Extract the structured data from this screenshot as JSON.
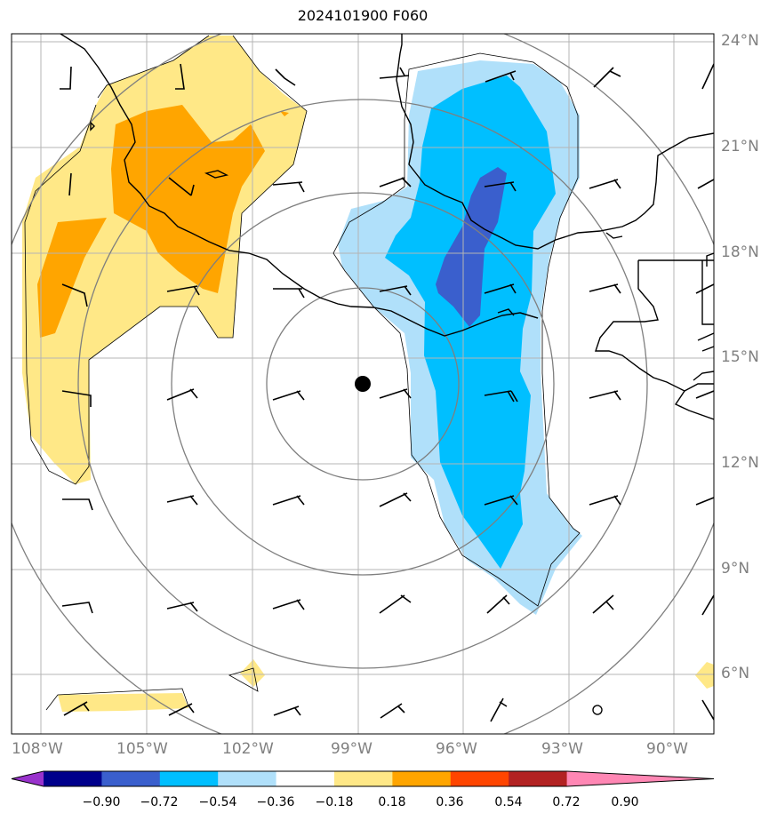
{
  "title": "2024101900 F060",
  "lat_labels": [
    "24°N",
    "21°N",
    "18°N",
    "15°N",
    "12°N",
    "9°N",
    "6°N"
  ],
  "lon_labels": [
    "108°W",
    "105°W",
    "102°W",
    "99°W",
    "96°W",
    "93°W",
    "90°W"
  ],
  "colorbar": {
    "ticks": [
      "−0.90",
      "−0.72",
      "−0.54",
      "−0.36",
      "−0.18",
      "0.18",
      "0.36",
      "0.54",
      "0.72",
      "0.90"
    ],
    "colors": [
      "#9932cc",
      "#00008b",
      "#3a5fcd",
      "#00bfff",
      "#b0e0fa",
      "#ffffff",
      "#ffe887",
      "#ffa500",
      "#ff4500",
      "#b22222",
      "#ff87b4"
    ]
  },
  "fill_colors": {
    "pos_036": "#ffe887",
    "pos_054": "#ffa500",
    "neg_018": "#b0e0fa",
    "neg_036": "#00bfff",
    "neg_054": "#3a5fcd"
  },
  "center_marker": "storm-center-dot"
}
